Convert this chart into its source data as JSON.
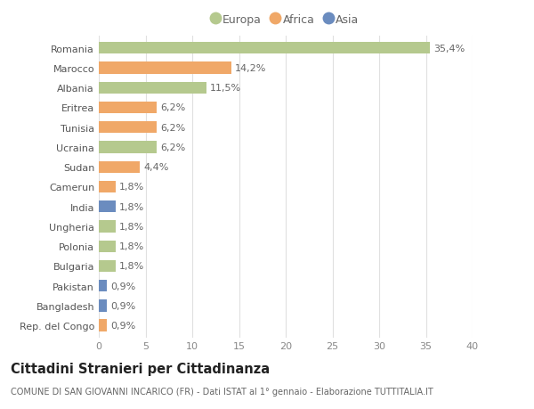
{
  "countries": [
    "Romania",
    "Marocco",
    "Albania",
    "Eritrea",
    "Tunisia",
    "Ucraina",
    "Sudan",
    "Camerun",
    "India",
    "Ungheria",
    "Polonia",
    "Bulgaria",
    "Pakistan",
    "Bangladesh",
    "Rep. del Congo"
  ],
  "values": [
    35.4,
    14.2,
    11.5,
    6.2,
    6.2,
    6.2,
    4.4,
    1.8,
    1.8,
    1.8,
    1.8,
    1.8,
    0.9,
    0.9,
    0.9
  ],
  "labels": [
    "35,4%",
    "14,2%",
    "11,5%",
    "6,2%",
    "6,2%",
    "6,2%",
    "4,4%",
    "1,8%",
    "1,8%",
    "1,8%",
    "1,8%",
    "1,8%",
    "0,9%",
    "0,9%",
    "0,9%"
  ],
  "continents": [
    "Europa",
    "Africa",
    "Europa",
    "Africa",
    "Africa",
    "Europa",
    "Africa",
    "Africa",
    "Asia",
    "Europa",
    "Europa",
    "Europa",
    "Asia",
    "Asia",
    "Africa"
  ],
  "continent_colors": {
    "Europa": "#b5c98e",
    "Africa": "#f0a868",
    "Asia": "#6b8cbf"
  },
  "legend_order": [
    "Europa",
    "Africa",
    "Asia"
  ],
  "title": "Cittadini Stranieri per Cittadinanza",
  "subtitle": "COMUNE DI SAN GIOVANNI INCARICO (FR) - Dati ISTAT al 1° gennaio - Elaborazione TUTTITALIA.IT",
  "xlim": [
    0,
    40
  ],
  "xticks": [
    0,
    5,
    10,
    15,
    20,
    25,
    30,
    35,
    40
  ],
  "bg_color": "#ffffff",
  "grid_color": "#e0e0e0",
  "bar_height": 0.6,
  "label_fontsize": 8.0,
  "tick_fontsize": 8.0,
  "title_fontsize": 10.5,
  "subtitle_fontsize": 7.0
}
